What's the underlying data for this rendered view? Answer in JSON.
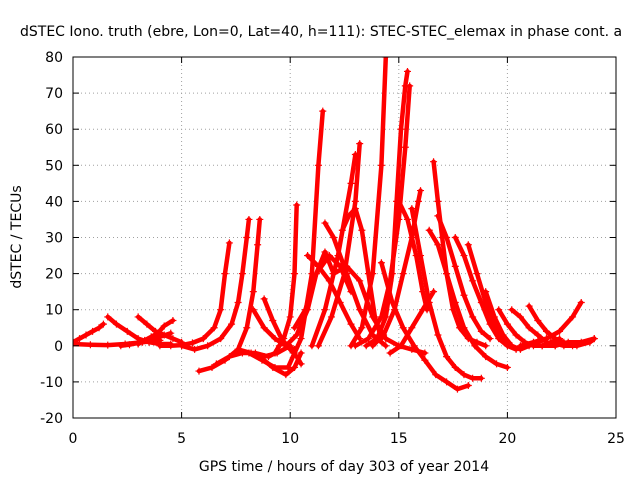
{
  "chart_data": {
    "type": "scatter",
    "title": "dSTEC Iono. truth (ebre, Lon=0, Lat=40, h=111): STEC-STEC_elemax in phase cont. a",
    "xlabel": "GPS time / hours of day 303 of year 2014",
    "ylabel": "dSTEC  / TECUs",
    "xlim": [
      0,
      25
    ],
    "ylim": [
      -20,
      80
    ],
    "xticks": [
      0,
      5,
      10,
      15,
      20,
      25
    ],
    "yticks": [
      -20,
      -10,
      0,
      10,
      20,
      30,
      40,
      50,
      60,
      70,
      80
    ],
    "grid": true,
    "marker": "+",
    "color": "#ff0000",
    "series": [
      {
        "x": [
          0,
          0.3,
          0.6,
          0.9,
          1.2,
          1.4
        ],
        "y": [
          1,
          2,
          3,
          4,
          5,
          6
        ]
      },
      {
        "x": [
          0,
          0.8,
          1.6,
          2.4,
          3.2,
          4.0
        ],
        "y": [
          0.5,
          0.3,
          0.2,
          0.5,
          1,
          1.5
        ]
      },
      {
        "x": [
          1.6,
          2.0,
          2.5,
          3.0,
          3.5,
          4.0,
          4.5
        ],
        "y": [
          8,
          6,
          4,
          2,
          1,
          0.5,
          0.5
        ]
      },
      {
        "x": [
          2.2,
          2.6,
          3.0,
          3.5,
          4.0,
          4.5
        ],
        "y": [
          0,
          0.3,
          0.8,
          1.5,
          2.5,
          3.5
        ]
      },
      {
        "x": [
          3.0,
          3.4,
          3.8,
          4.2,
          4.6,
          5.0
        ],
        "y": [
          8,
          6,
          4,
          3,
          2,
          1
        ]
      },
      {
        "x": [
          3.0,
          3.3,
          3.6,
          3.9,
          4.2,
          4.6
        ],
        "y": [
          0.5,
          1.5,
          2.5,
          3.5,
          5.5,
          7
        ]
      },
      {
        "x": [
          4.0,
          4.5,
          5.0,
          5.5,
          6.0,
          6.5,
          6.8,
          7.0,
          7.2
        ],
        "y": [
          0,
          0,
          0.2,
          0.8,
          2,
          5,
          10,
          20,
          28.5
        ]
      },
      {
        "x": [
          5.0,
          5.6,
          6.2,
          6.8,
          7.3,
          7.6,
          7.8,
          8.0,
          8.1
        ],
        "y": [
          0,
          -1,
          0,
          2,
          6,
          12,
          20,
          30,
          35
        ]
      },
      {
        "x": [
          5.8,
          6.4,
          7.0,
          7.6,
          8.0,
          8.3,
          8.5,
          8.6
        ],
        "y": [
          -7,
          -6,
          -4,
          -1,
          5,
          15,
          28,
          35
        ]
      },
      {
        "x": [
          6.6,
          7.2,
          7.8,
          8.4,
          9.0,
          9.3,
          9.5
        ],
        "y": [
          -5,
          -3,
          -2,
          -2,
          -3,
          -2,
          0
        ]
      },
      {
        "x": [
          7.6,
          8.2,
          8.8,
          9.4,
          10.0
        ],
        "y": [
          -1,
          -2,
          -3,
          -2,
          0
        ]
      },
      {
        "x": [
          8.1,
          8.7,
          9.3,
          9.9,
          10.5,
          11.0,
          11.3,
          11.5
        ],
        "y": [
          -2,
          -4,
          -6,
          -6,
          2,
          20,
          50,
          65
        ]
      },
      {
        "x": [
          8.6,
          9.2,
          9.8,
          10.2,
          10.5
        ],
        "y": [
          -3,
          -6,
          -8,
          -6,
          -2
        ]
      },
      {
        "x": [
          8.3,
          8.8,
          9.3,
          9.8,
          10.2
        ],
        "y": [
          10,
          5,
          2,
          0,
          -1
        ]
      },
      {
        "x": [
          8.8,
          9.2,
          9.6,
          10.0,
          10.3,
          10.5
        ],
        "y": [
          13,
          7,
          2,
          -1,
          -3,
          -5
        ]
      },
      {
        "x": [
          9.3,
          9.7,
          10.0,
          10.2,
          10.3
        ],
        "y": [
          -2,
          2,
          8,
          20,
          39
        ]
      },
      {
        "x": [
          9.8,
          10.3,
          10.8,
          11.2,
          11.6,
          12.0
        ],
        "y": [
          0,
          3,
          10,
          20,
          26,
          20
        ]
      },
      {
        "x": [
          10.2,
          10.7,
          11.2,
          11.8,
          12.3,
          12.8
        ],
        "y": [
          5,
          10,
          20,
          25,
          22,
          15
        ]
      },
      {
        "x": [
          10.8,
          11.3,
          11.8,
          12.3,
          12.8,
          13.2
        ],
        "y": [
          25,
          22,
          18,
          12,
          6,
          2
        ]
      },
      {
        "x": [
          11.0,
          11.6,
          12.2,
          12.8,
          13.0
        ],
        "y": [
          0,
          10,
          25,
          45,
          53
        ]
      },
      {
        "x": [
          11.3,
          11.9,
          12.5,
          13.0,
          13.2
        ],
        "y": [
          0,
          8,
          20,
          40,
          56
        ]
      },
      {
        "x": [
          11.6,
          12.0,
          12.6,
          13.2,
          13.8,
          14.4
        ],
        "y": [
          34,
          30,
          20,
          10,
          3,
          0
        ]
      },
      {
        "x": [
          12.0,
          12.6,
          13.2,
          13.8,
          14.4,
          15.0,
          15.6,
          16.2
        ],
        "y": [
          20,
          22,
          18,
          8,
          2,
          0,
          -1,
          -2
        ]
      },
      {
        "x": [
          12.4,
          12.7,
          13.0,
          13.3,
          13.6,
          13.9,
          14.2
        ],
        "y": [
          32,
          36,
          38,
          32,
          20,
          8,
          2
        ]
      },
      {
        "x": [
          12.8,
          13.3,
          13.8,
          14.2,
          14.4
        ],
        "y": [
          0,
          5,
          20,
          50,
          80
        ]
      },
      {
        "x": [
          13.5,
          14.0,
          14.4,
          14.7,
          14.9,
          15.1,
          15.3,
          15.4
        ],
        "y": [
          0,
          2,
          8,
          20,
          40,
          60,
          72,
          76
        ]
      },
      {
        "x": [
          13.0,
          13.6,
          14.2,
          14.6,
          15.0,
          15.3,
          15.5
        ],
        "y": [
          0,
          2,
          8,
          18,
          35,
          55,
          72
        ]
      },
      {
        "x": [
          13.8,
          14.3,
          14.8,
          15.2,
          15.6,
          15.9,
          16.0
        ],
        "y": [
          0,
          3,
          10,
          20,
          30,
          40,
          43
        ]
      },
      {
        "x": [
          14.6,
          15.1,
          15.6,
          16.1,
          16.6
        ],
        "y": [
          -2,
          0,
          5,
          10,
          15
        ]
      },
      {
        "x": [
          14.2,
          14.7,
          15.2,
          15.7,
          16.2,
          16.7,
          17.2,
          17.7,
          18.2
        ],
        "y": [
          23,
          12,
          5,
          0,
          -4,
          -8,
          -10,
          -12,
          -11
        ]
      },
      {
        "x": [
          15.0,
          15.4,
          15.8,
          16.1,
          16.3
        ],
        "y": [
          40,
          35,
          25,
          15,
          10
        ]
      },
      {
        "x": [
          15.6,
          16.0,
          16.4,
          16.8,
          17.2,
          17.6,
          18.0,
          18.4,
          18.8
        ],
        "y": [
          38,
          25,
          12,
          3,
          -3,
          -6,
          -8,
          -9,
          -9
        ]
      },
      {
        "x": [
          16.6,
          16.8,
          17.0,
          17.2,
          17.5,
          17.8,
          18.2,
          18.6,
          19.0
        ],
        "y": [
          51,
          40,
          30,
          20,
          10,
          5,
          2,
          1,
          0
        ]
      },
      {
        "x": [
          16.4,
          16.8,
          17.2,
          17.6,
          18.0,
          18.5,
          19.0,
          19.5,
          20.0
        ],
        "y": [
          32,
          28,
          20,
          12,
          5,
          0,
          -3,
          -5,
          -6
        ]
      },
      {
        "x": [
          16.8,
          17.2,
          17.6,
          18.0,
          18.4,
          18.8,
          19.2
        ],
        "y": [
          36,
          30,
          22,
          14,
          8,
          4,
          2
        ]
      },
      {
        "x": [
          17.6,
          18.0,
          18.4,
          18.8,
          19.2,
          19.6,
          20.0,
          20.4
        ],
        "y": [
          30,
          25,
          18,
          12,
          6,
          2,
          0,
          -1
        ]
      },
      {
        "x": [
          18.2,
          18.6,
          19.0,
          19.4,
          19.8,
          20.2
        ],
        "y": [
          28,
          20,
          12,
          6,
          2,
          0
        ]
      },
      {
        "x": [
          19.0,
          19.4,
          19.8,
          20.2,
          20.6,
          21.0,
          21.4,
          21.8
        ],
        "y": [
          15,
          8,
          3,
          0,
          -1,
          0,
          1,
          2
        ]
      },
      {
        "x": [
          19.6,
          20.0,
          20.4,
          20.8,
          21.2,
          21.6,
          22.0,
          22.4
        ],
        "y": [
          10,
          6,
          3,
          1,
          0,
          0,
          1,
          2
        ]
      },
      {
        "x": [
          20.2,
          20.6,
          21.0,
          21.4,
          21.8,
          22.2
        ],
        "y": [
          10,
          8,
          5,
          3,
          1,
          0
        ]
      },
      {
        "x": [
          21.0,
          21.4,
          21.8,
          22.2,
          22.6,
          23.0
        ],
        "y": [
          11,
          7,
          4,
          2,
          1,
          0
        ]
      },
      {
        "x": [
          20.6,
          21.2,
          21.8,
          22.4,
          23.0,
          23.4
        ],
        "y": [
          0,
          1,
          2,
          4,
          8,
          12
        ]
      },
      {
        "x": [
          21.6,
          22.2,
          22.8,
          23.4,
          24.0
        ],
        "y": [
          0,
          0,
          1,
          1,
          2
        ]
      },
      {
        "x": [
          22.0,
          22.6,
          23.2,
          23.8,
          24.0
        ],
        "y": [
          1,
          0,
          0,
          1,
          2
        ]
      }
    ]
  }
}
